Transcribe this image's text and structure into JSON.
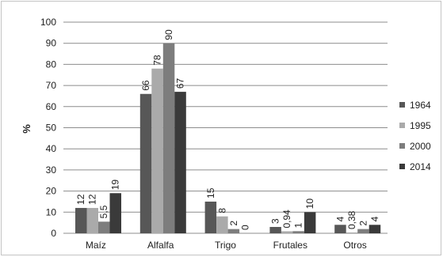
{
  "chart_data": {
    "type": "bar",
    "categories": [
      "Maíz",
      "Alfalfa",
      "Trigo",
      "Frutales",
      "Otros"
    ],
    "series": [
      {
        "name": "1964",
        "values": [
          12,
          66,
          15,
          3,
          4
        ],
        "labels": [
          "12",
          "66",
          "15",
          "3",
          "4"
        ],
        "color": "#575757"
      },
      {
        "name": "1995",
        "values": [
          12,
          78,
          8,
          0.94,
          0.38
        ],
        "labels": [
          "12",
          "78",
          "8",
          "0,94",
          "0,38"
        ],
        "color": "#aaaaaa"
      },
      {
        "name": "2000",
        "values": [
          5.5,
          90,
          2,
          1,
          2
        ],
        "labels": [
          "5,5",
          "90",
          "2",
          "1",
          "2"
        ],
        "color": "#7d7d7d"
      },
      {
        "name": "2014",
        "values": [
          19,
          67,
          0,
          10,
          4
        ],
        "labels": [
          "19",
          "67",
          "0",
          "10",
          "4"
        ],
        "color": "#3a3a3a"
      }
    ],
    "title": "",
    "xlabel": "",
    "ylabel": "%",
    "ylim": [
      0,
      100
    ],
    "yticks": [
      0,
      10,
      20,
      30,
      40,
      50,
      60,
      70,
      80,
      90,
      100
    ],
    "grid": true,
    "legend_position": "right"
  }
}
